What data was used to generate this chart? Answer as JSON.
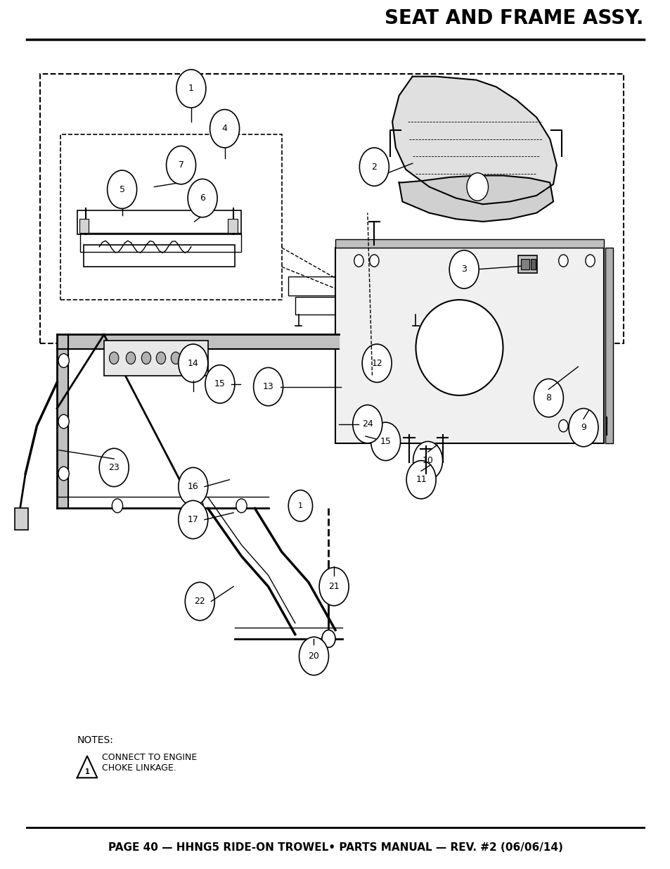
{
  "title": "SEAT AND FRAME ASSY.",
  "footer": "PAGE 40 — HHNG5 RIDE-ON TROWEL• PARTS MANUAL — REV. #2 (06/06/14)",
  "notes_title": "NOTES:",
  "note1": "CONNECT TO ENGINE\nCHOKE LINKAGE.",
  "bg_color": "#ffffff",
  "title_fontsize": 20,
  "footer_fontsize": 11,
  "line_color": "#000000"
}
